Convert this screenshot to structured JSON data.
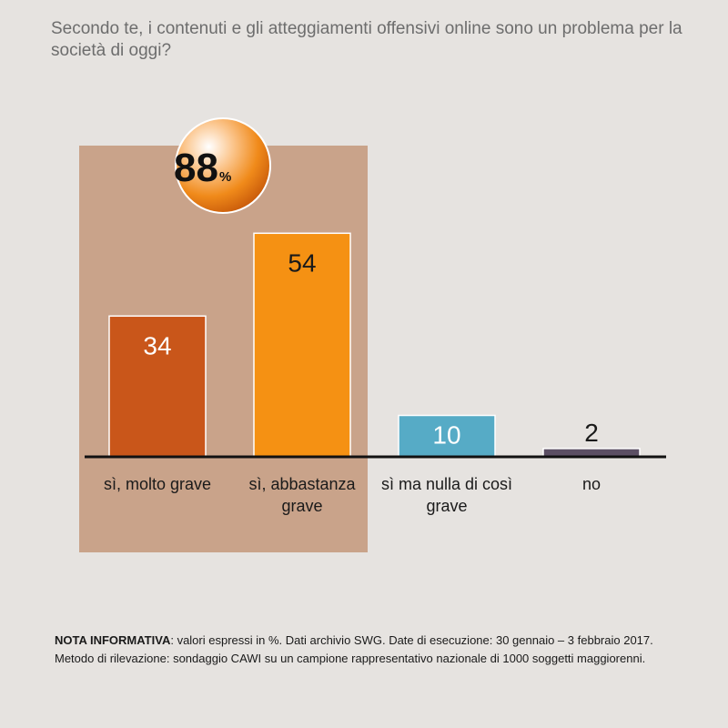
{
  "question": "Secondo te, i contenuti e gli atteggiamenti offensivi online sono un problema per la società di oggi?",
  "highlight": {
    "value": "88",
    "unit": "%"
  },
  "chart_data": {
    "type": "bar",
    "categories": [
      "sì, molto grave",
      "sì, abbastanza grave",
      "sì ma nulla di così grave",
      "no"
    ],
    "category_lines": [
      [
        "sì, molto grave"
      ],
      [
        "sì, abbastanza",
        "grave"
      ],
      [
        "sì ma nulla di così",
        "grave"
      ],
      [
        "no"
      ]
    ],
    "values": [
      34,
      54,
      10,
      2
    ],
    "value_labels": [
      "34",
      "54",
      "10",
      "2"
    ],
    "colors": [
      "#c9561a",
      "#f59113",
      "#56abc6",
      "#5c4f64"
    ],
    "label_colors": [
      "#ffffff",
      "#1a1a1a",
      "#ffffff",
      "#1a1a1a"
    ],
    "highlight_panel_color": "#c9a38a",
    "ylim": [
      0,
      60
    ]
  },
  "note": {
    "label": "NOTA INFORMATIVA",
    "line1": ": valori espressi in %. Dati archivio SWG. Date di esecuzione: 30 gennaio – 3 febbraio 2017.",
    "line2": "Metodo di rilevazione: sondaggio CAWI su un campione rappresentativo nazionale di 1000 soggetti maggiorenni."
  }
}
